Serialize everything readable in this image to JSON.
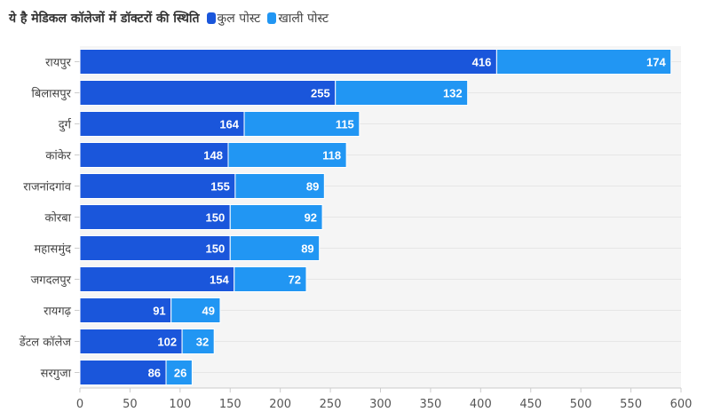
{
  "chart_data": {
    "type": "bar",
    "orientation": "horizontal",
    "stacked": true,
    "title": "ये है मेडिकल कॉलेजों में डॉक्टरों की स्थिति",
    "categories": [
      "रायपुर",
      "बिलासपुर",
      "दुर्ग",
      "कांकेर",
      "राजनांदगांव",
      "कोरबा",
      "महासमुंद",
      "जगदलपुर",
      "रायगढ़",
      "डेंटल कॉलेज",
      "सरगुजा"
    ],
    "series": [
      {
        "name": "कुल पोस्ट",
        "color": "#1a56db",
        "values": [
          416,
          255,
          164,
          148,
          155,
          150,
          150,
          154,
          91,
          102,
          86
        ]
      },
      {
        "name": "खाली पोस्ट",
        "color": "#2196f3",
        "values": [
          174,
          132,
          115,
          118,
          89,
          92,
          89,
          72,
          49,
          32,
          26
        ]
      }
    ],
    "xlim": [
      0,
      600
    ],
    "xticks": [
      "0",
      "50",
      "100",
      "150",
      "200",
      "250",
      "300",
      "350",
      "400",
      "450",
      "500",
      "550",
      "600"
    ],
    "grid": true,
    "legend_position": "top"
  }
}
